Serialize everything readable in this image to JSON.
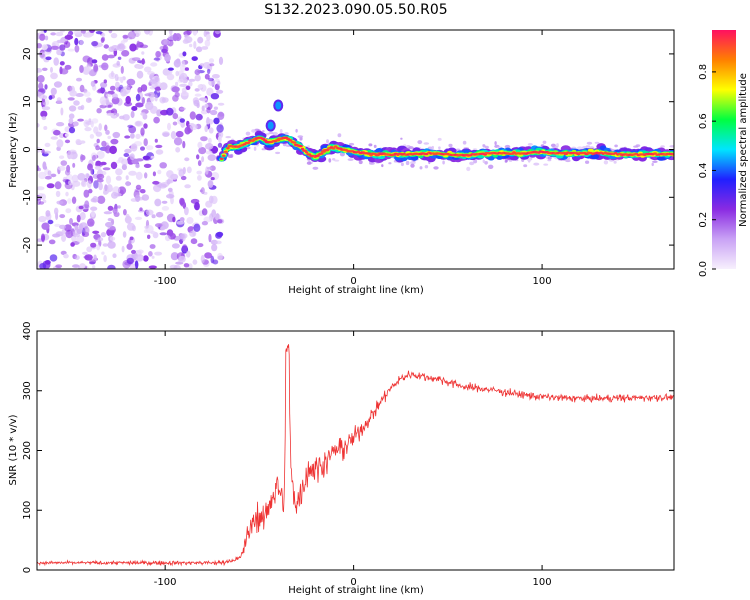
{
  "title": "S132.2023.090.05.50.R05",
  "colors": {
    "signal": "#ee3333",
    "noise": "#7a1fe0",
    "colormap": [
      "#f7f0fd",
      "#c9a2f5",
      "#8a2be2",
      "#2020ff",
      "#00e5ff",
      "#00ff40",
      "#ffff00",
      "#ff8000",
      "#ff1060"
    ]
  },
  "chart_data": [
    {
      "type": "heatmap",
      "title": "",
      "xlabel": "Height of straight line (km)",
      "ylabel": "Frequency (Hz)",
      "xlim": [
        -168,
        170
      ],
      "ylim": [
        -25,
        25
      ],
      "xticks": [
        -100,
        0,
        100
      ],
      "yticks": [
        -20,
        -10,
        0,
        10,
        20
      ],
      "colorbar": {
        "label": "Normalized spectral amplitude",
        "lim": [
          0,
          0.97
        ],
        "ticks": [
          "0.0",
          "0.2",
          "0.4",
          "0.6",
          "0.8"
        ]
      },
      "noise_region_x": [
        -168,
        -70
      ],
      "ridge": [
        {
          "x": -70,
          "y": -2.0
        },
        {
          "x": -66,
          "y": 0.8
        },
        {
          "x": -62,
          "y": 0.5
        },
        {
          "x": -56,
          "y": 1.5
        },
        {
          "x": -50,
          "y": 2.5
        },
        {
          "x": -45,
          "y": 1.5
        },
        {
          "x": -40,
          "y": 2.0
        },
        {
          "x": -36,
          "y": 2.5
        },
        {
          "x": -32,
          "y": 1.5
        },
        {
          "x": -28,
          "y": 0.5
        },
        {
          "x": -24,
          "y": -1.0
        },
        {
          "x": -20,
          "y": -1.5
        },
        {
          "x": -16,
          "y": -0.5
        },
        {
          "x": -12,
          "y": 0.5
        },
        {
          "x": -5,
          "y": 0.0
        },
        {
          "x": 0,
          "y": -0.5
        },
        {
          "x": 10,
          "y": -1.0
        },
        {
          "x": 20,
          "y": -1.0
        },
        {
          "x": 30,
          "y": -1.0
        },
        {
          "x": 40,
          "y": -0.8
        },
        {
          "x": 50,
          "y": -1.0
        },
        {
          "x": 60,
          "y": -1.2
        },
        {
          "x": 70,
          "y": -0.8
        },
        {
          "x": 80,
          "y": -0.8
        },
        {
          "x": 90,
          "y": -0.8
        },
        {
          "x": 100,
          "y": -0.5
        },
        {
          "x": 110,
          "y": -0.8
        },
        {
          "x": 120,
          "y": -0.8
        },
        {
          "x": 130,
          "y": -0.6
        },
        {
          "x": 140,
          "y": -1.0
        },
        {
          "x": 150,
          "y": -1.0
        },
        {
          "x": 160,
          "y": -1.0
        },
        {
          "x": 170,
          "y": -1.0
        }
      ],
      "spikes": [
        {
          "x": -40,
          "y": 9.2
        },
        {
          "x": -44,
          "y": 5.0
        }
      ]
    },
    {
      "type": "line",
      "title": "",
      "xlabel": "Height of straight line (km)",
      "ylabel": "SNR (10 * v/v)",
      "xlim": [
        -168,
        170
      ],
      "ylim": [
        0,
        400
      ],
      "xticks": [
        -100,
        0,
        100
      ],
      "yticks": [
        0,
        100,
        200,
        300,
        400
      ],
      "series": [
        {
          "x": [
            -168,
            -150,
            -120,
            -90,
            -70,
            -60,
            -56,
            -52,
            -48,
            -44,
            -40,
            -37,
            -35,
            -33,
            -30,
            -27,
            -24,
            -20,
            -15,
            -10,
            -5,
            0,
            5,
            10,
            15,
            20,
            25,
            30,
            35,
            40,
            45,
            50,
            55,
            60,
            70,
            80,
            90,
            100,
            110,
            120,
            130,
            140,
            150,
            160,
            170
          ],
          "y": [
            12,
            12,
            12,
            12,
            12,
            20,
            60,
            90,
            80,
            120,
            140,
            110,
            370,
            150,
            110,
            140,
            170,
            170,
            180,
            200,
            205,
            220,
            240,
            260,
            285,
            305,
            320,
            328,
            325,
            322,
            320,
            315,
            310,
            306,
            303,
            298,
            293,
            290,
            288,
            287,
            287,
            288,
            288,
            289,
            289
          ]
        }
      ],
      "noise_amplitude": [
        {
          "x": -168,
          "amp": 4
        },
        {
          "x": -60,
          "amp": 6
        },
        {
          "x": -58,
          "amp": 25
        },
        {
          "x": -40,
          "amp": 45
        },
        {
          "x": -30,
          "amp": 45
        },
        {
          "x": -20,
          "amp": 35
        },
        {
          "x": 0,
          "amp": 25
        },
        {
          "x": 20,
          "amp": 12
        },
        {
          "x": 60,
          "amp": 10
        },
        {
          "x": 170,
          "amp": 9
        }
      ]
    }
  ]
}
